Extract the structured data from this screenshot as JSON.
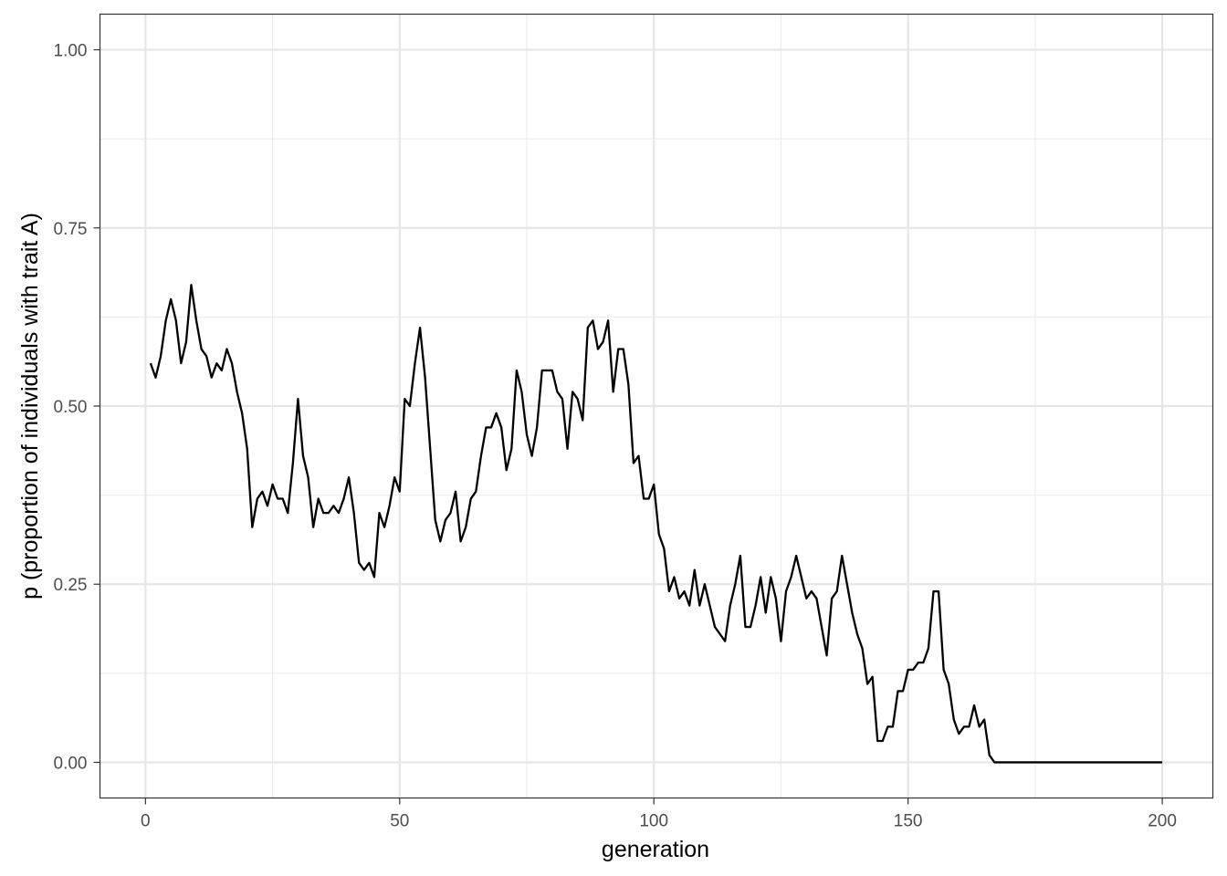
{
  "chart_data": {
    "type": "line",
    "title": "",
    "xlabel": "generation",
    "ylabel": "p (proportion of individuals with trait A)",
    "xlim": [
      -8.95,
      209.95
    ],
    "ylim": [
      -0.05,
      1.05
    ],
    "x_ticks": [
      0,
      50,
      100,
      150,
      200
    ],
    "x_tick_labels": [
      "0",
      "50",
      "100",
      "150",
      "200"
    ],
    "x_minor_ticks": [
      25,
      75,
      125,
      175
    ],
    "y_ticks": [
      0,
      0.25,
      0.5,
      0.75,
      1.0
    ],
    "y_tick_labels": [
      "0.00",
      "0.25",
      "0.50",
      "0.75",
      "1.00"
    ],
    "y_minor_ticks": [
      0.125,
      0.375,
      0.625,
      0.875
    ],
    "grid": true,
    "legend": "none",
    "line_color": "#000000",
    "x": [
      1,
      2,
      3,
      4,
      5,
      6,
      7,
      8,
      9,
      10,
      11,
      12,
      13,
      14,
      15,
      16,
      17,
      18,
      19,
      20,
      21,
      22,
      23,
      24,
      25,
      26,
      27,
      28,
      29,
      30,
      31,
      32,
      33,
      34,
      35,
      36,
      37,
      38,
      39,
      40,
      41,
      42,
      43,
      44,
      45,
      46,
      47,
      48,
      49,
      50,
      51,
      52,
      53,
      54,
      55,
      56,
      57,
      58,
      59,
      60,
      61,
      62,
      63,
      64,
      65,
      66,
      67,
      68,
      69,
      70,
      71,
      72,
      73,
      74,
      75,
      76,
      77,
      78,
      79,
      80,
      81,
      82,
      83,
      84,
      85,
      86,
      87,
      88,
      89,
      90,
      91,
      92,
      93,
      94,
      95,
      96,
      97,
      98,
      99,
      100,
      101,
      102,
      103,
      104,
      105,
      106,
      107,
      108,
      109,
      110,
      111,
      112,
      113,
      114,
      115,
      116,
      117,
      118,
      119,
      120,
      121,
      122,
      123,
      124,
      125,
      126,
      127,
      128,
      129,
      130,
      131,
      132,
      133,
      134,
      135,
      136,
      137,
      138,
      139,
      140,
      141,
      142,
      143,
      144,
      145,
      146,
      147,
      148,
      149,
      150,
      151,
      152,
      153,
      154,
      155,
      156,
      157,
      158,
      159,
      160,
      161,
      162,
      163,
      164,
      165,
      166,
      167,
      168,
      169,
      170,
      171,
      172,
      173,
      174,
      175,
      176,
      177,
      178,
      179,
      180,
      181,
      182,
      183,
      184,
      185,
      186,
      187,
      188,
      189,
      190,
      191,
      192,
      193,
      194,
      195,
      196,
      197,
      198,
      199,
      200
    ],
    "y": [
      0.56,
      0.54,
      0.57,
      0.62,
      0.65,
      0.62,
      0.56,
      0.59,
      0.67,
      0.62,
      0.58,
      0.57,
      0.54,
      0.56,
      0.55,
      0.58,
      0.56,
      0.52,
      0.49,
      0.44,
      0.33,
      0.37,
      0.38,
      0.36,
      0.39,
      0.37,
      0.37,
      0.35,
      0.42,
      0.51,
      0.43,
      0.4,
      0.33,
      0.37,
      0.35,
      0.35,
      0.36,
      0.35,
      0.37,
      0.4,
      0.35,
      0.28,
      0.27,
      0.28,
      0.26,
      0.35,
      0.33,
      0.36,
      0.4,
      0.38,
      0.51,
      0.5,
      0.56,
      0.61,
      0.54,
      0.44,
      0.34,
      0.31,
      0.34,
      0.35,
      0.38,
      0.31,
      0.33,
      0.37,
      0.38,
      0.43,
      0.47,
      0.47,
      0.49,
      0.47,
      0.41,
      0.44,
      0.55,
      0.52,
      0.46,
      0.43,
      0.47,
      0.55,
      0.55,
      0.55,
      0.52,
      0.51,
      0.44,
      0.52,
      0.51,
      0.48,
      0.61,
      0.62,
      0.58,
      0.59,
      0.62,
      0.52,
      0.58,
      0.58,
      0.53,
      0.42,
      0.43,
      0.37,
      0.37,
      0.39,
      0.32,
      0.3,
      0.24,
      0.26,
      0.23,
      0.24,
      0.22,
      0.27,
      0.22,
      0.25,
      0.22,
      0.19,
      0.18,
      0.17,
      0.22,
      0.25,
      0.29,
      0.19,
      0.19,
      0.22,
      0.26,
      0.21,
      0.26,
      0.23,
      0.17,
      0.24,
      0.26,
      0.29,
      0.26,
      0.23,
      0.24,
      0.23,
      0.19,
      0.15,
      0.23,
      0.24,
      0.29,
      0.25,
      0.21,
      0.18,
      0.16,
      0.11,
      0.12,
      0.03,
      0.03,
      0.05,
      0.05,
      0.1,
      0.1,
      0.13,
      0.13,
      0.14,
      0.14,
      0.16,
      0.24,
      0.24,
      0.13,
      0.11,
      0.06,
      0.04,
      0.05,
      0.05,
      0.08,
      0.05,
      0.06,
      0.01,
      0.0,
      0.0,
      0.0,
      0.0,
      0.0,
      0.0,
      0.0,
      0.0,
      0.0,
      0.0,
      0.0,
      0.0,
      0.0,
      0.0,
      0.0,
      0.0,
      0.0,
      0.0,
      0.0,
      0.0,
      0.0,
      0.0,
      0.0,
      0.0,
      0.0,
      0.0,
      0.0,
      0.0,
      0.0,
      0.0,
      0.0,
      0.0,
      0.0,
      0.0
    ]
  }
}
